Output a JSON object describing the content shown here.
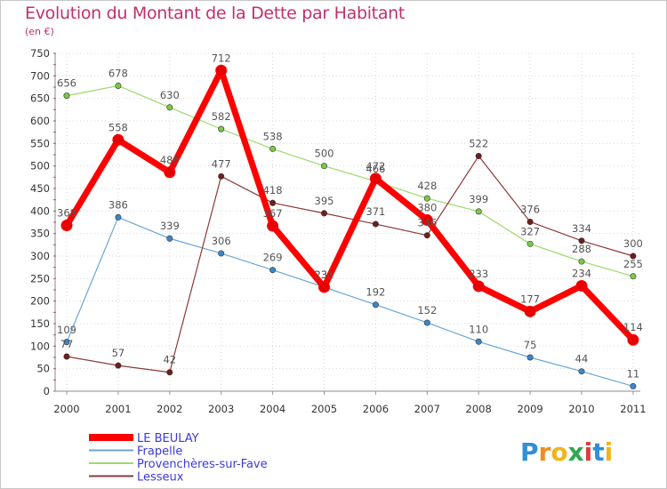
{
  "title": "Evolution du Montant de la Dette par Habitant",
  "subtitle": "(en €)",
  "logo": "Proxiti",
  "chart_data": {
    "type": "line",
    "x": [
      2000,
      2001,
      2002,
      2003,
      2004,
      2005,
      2006,
      2007,
      2008,
      2009,
      2010,
      2011
    ],
    "ylim": [
      0,
      750
    ],
    "yticks": [
      0,
      50,
      100,
      150,
      200,
      250,
      300,
      350,
      400,
      450,
      500,
      550,
      600,
      650,
      700,
      750
    ],
    "grid": true,
    "legend": "bottom-left",
    "series": [
      {
        "name": "Frapelle",
        "color": "#6aa6d6",
        "marker": "#3b86c8",
        "width": 1.2,
        "values": [
          109,
          386,
          339,
          306,
          269,
          231,
          192,
          152,
          110,
          75,
          44,
          11
        ],
        "labels": [
          "109",
          "386",
          "339",
          "306",
          "269",
          "231",
          "192",
          "152",
          "110",
          "75",
          "44",
          "11"
        ]
      },
      {
        "name": "Provenchères-sur-Fave",
        "color": "#9ed86b",
        "marker": "#7cc947",
        "width": 1.2,
        "values": [
          656,
          678,
          630,
          582,
          538,
          500,
          466,
          428,
          399,
          327,
          288,
          255
        ],
        "labels": [
          "656",
          "678",
          "630",
          "582",
          "538",
          "500",
          "466",
          "428",
          "399",
          "327",
          "288",
          "255"
        ]
      },
      {
        "name": "Lesseux",
        "color": "#8b3a3a",
        "marker": "#6e1e1e",
        "width": 1.2,
        "values": [
          77,
          57,
          42,
          477,
          418,
          395,
          371,
          346,
          522,
          376,
          334,
          300
        ],
        "labels": [
          "77",
          "57",
          "42",
          "477",
          "418",
          "395",
          "371",
          "346",
          "522",
          "376",
          "334",
          "300"
        ]
      },
      {
        "name": "LE BEULAY",
        "color": "#ff0000",
        "marker": "#e60000",
        "width": 7,
        "values": [
          368,
          558,
          486,
          712,
          367,
          231,
          472,
          380,
          233,
          177,
          234,
          114
        ],
        "labels": [
          "368",
          "558",
          "486",
          "712",
          "367",
          "231",
          "472",
          "380",
          "233",
          "177",
          "234",
          "114"
        ]
      }
    ],
    "legend_order": [
      "LE BEULAY",
      "Frapelle",
      "Provenchères-sur-Fave",
      "Lesseux"
    ]
  }
}
